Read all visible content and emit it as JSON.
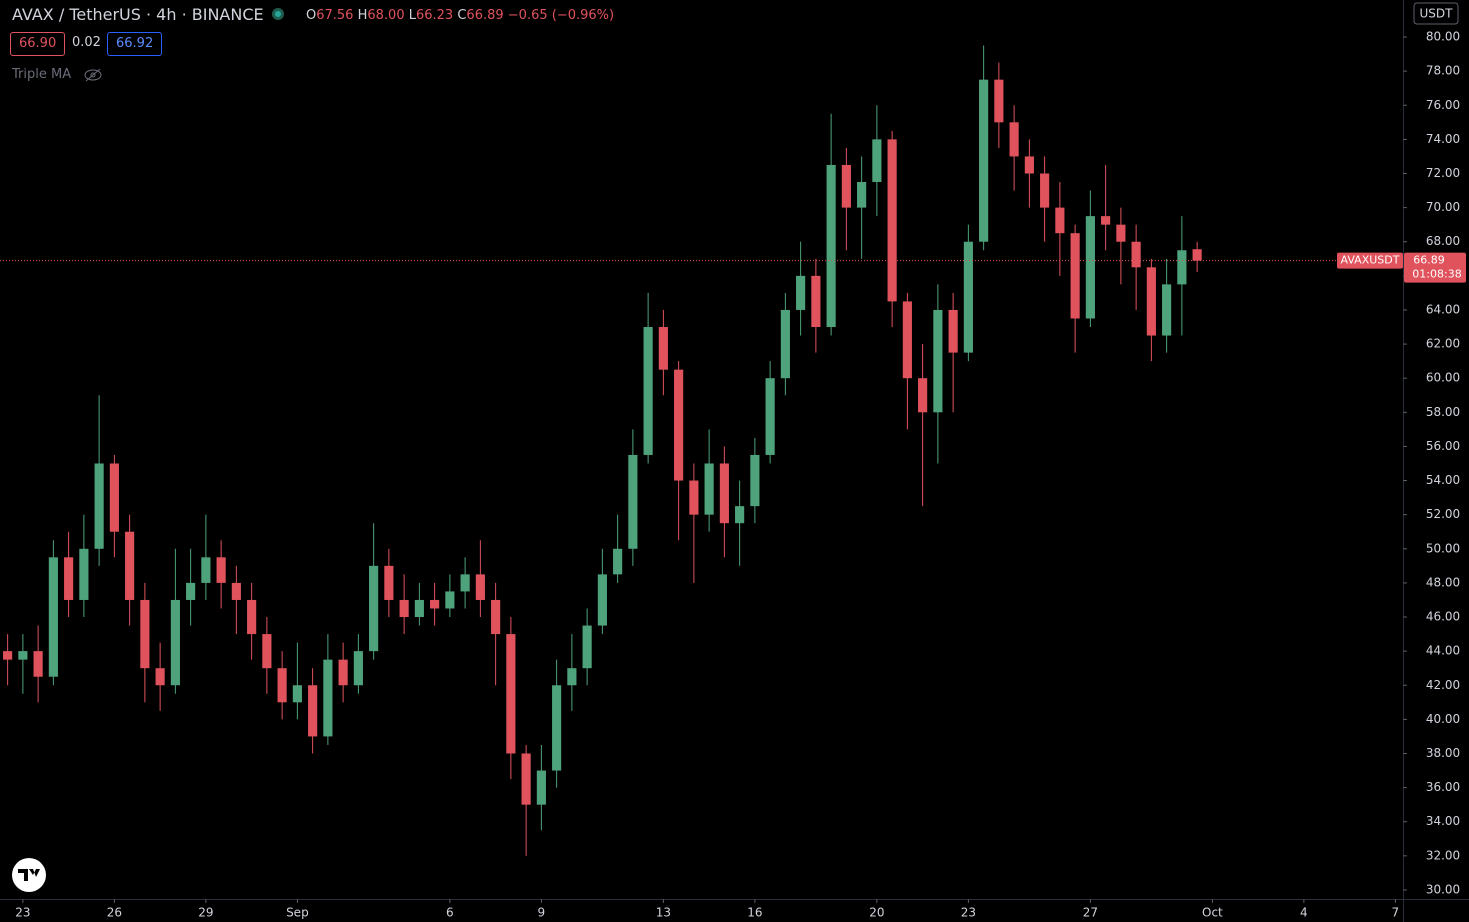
{
  "header": {
    "symbol": "AVAX / TetherUS · 4h · BINANCE",
    "o_label": "O",
    "o": "67.56",
    "h_label": "H",
    "h": "68.00",
    "l_label": "L",
    "l": "66.23",
    "c_label": "C",
    "c": "66.89",
    "change": "−0.65 (−0.96%)",
    "bid": "66.90",
    "spread": "0.02",
    "ask": "66.92",
    "indicator": "Triple MA",
    "currency": "USDT",
    "price_tag": "AVAXUSDT",
    "countdown": "01:08:38"
  },
  "chart_data": {
    "type": "candlestick",
    "title": "AVAX / TetherUS · 4h · BINANCE",
    "up_color": "#4fa37c",
    "down_color": "#e0535d",
    "x": [
      -0.5,
      0,
      0.5,
      1,
      1.5,
      2,
      2.5,
      3,
      3.5,
      4,
      4.5,
      5,
      5.5,
      6,
      6.5,
      7,
      7.5,
      8,
      8.5,
      9,
      9.5,
      10,
      10.5,
      11,
      11.5,
      12,
      12.5,
      13,
      13.5,
      14,
      14.5,
      15,
      15.5,
      16,
      16.5,
      17,
      17.5,
      18,
      18.5,
      19,
      19.5,
      20,
      20.5,
      21,
      21.5,
      22,
      22.5,
      23,
      23.5,
      24,
      24.5,
      25,
      25.5,
      26,
      26.5,
      27,
      27.5,
      28,
      28.5,
      29,
      29.5,
      30,
      30.5,
      31,
      31.5,
      32,
      32.5,
      33,
      33.5,
      34,
      34.5,
      35,
      35.5,
      36,
      36.5,
      37,
      37.5,
      38,
      38.5
    ],
    "open": [
      44,
      43.5,
      44,
      42.5,
      49.5,
      47,
      50,
      55,
      51,
      47,
      43,
      42,
      47,
      48,
      49.5,
      48,
      47,
      45,
      43,
      41,
      42,
      39,
      43.5,
      42,
      44,
      49,
      47,
      46,
      47,
      46.5,
      47.5,
      48.5,
      47,
      45,
      38,
      35,
      37,
      42,
      43,
      45.5,
      48.5,
      50,
      55.5,
      63,
      60.5,
      54,
      52,
      55,
      51.5,
      52.5,
      55.5,
      60,
      64,
      66,
      63,
      72.5,
      70,
      71.5,
      74,
      64.5,
      60,
      58,
      64,
      61.5,
      68,
      77.5,
      75,
      73,
      72,
      70,
      68.5,
      63.5,
      69.5,
      69,
      68,
      66.5,
      62.5,
      65.5,
      67.56
    ],
    "high": [
      45,
      45,
      45.5,
      50.5,
      51,
      52,
      59,
      55.5,
      52,
      48,
      44.5,
      50,
      50,
      52,
      50.5,
      49,
      48,
      46,
      44,
      44.5,
      43,
      45,
      44.5,
      45,
      51.5,
      50,
      48.5,
      48,
      48,
      48.5,
      49.5,
      50.5,
      48,
      46,
      38.5,
      38.5,
      43.5,
      45,
      46.5,
      50,
      52,
      57,
      65,
      64,
      61,
      55,
      57,
      56,
      54,
      56.5,
      61,
      65,
      68,
      67,
      75.5,
      73.5,
      73,
      76,
      74.5,
      65,
      62,
      65.5,
      65,
      69,
      79.5,
      78.5,
      76,
      74,
      73,
      71.5,
      69,
      71,
      72.5,
      70,
      69,
      67,
      67,
      69.5,
      68
    ],
    "low": [
      42,
      41.5,
      41,
      42,
      46,
      46,
      49,
      49.5,
      45.5,
      41,
      40.5,
      41.5,
      45.5,
      47,
      46.5,
      45,
      43.5,
      41.5,
      40,
      40,
      38,
      38.5,
      41,
      41.5,
      43.5,
      46,
      45,
      45.5,
      45.5,
      46,
      46.5,
      46,
      42,
      36.5,
      32,
      33.5,
      36,
      40.5,
      42,
      45,
      48,
      49,
      55,
      59,
      50.5,
      48,
      51,
      49.5,
      49,
      51.5,
      55,
      59,
      62.5,
      61.5,
      62.5,
      67.5,
      67,
      69.5,
      63,
      57,
      52.5,
      55,
      58,
      61,
      67.5,
      73.5,
      71,
      70,
      68,
      66,
      61.5,
      63,
      67.5,
      65.5,
      64,
      61,
      61.5,
      62.5,
      66.23
    ],
    "close": [
      43.5,
      44,
      42.5,
      49.5,
      47,
      50,
      55,
      51,
      47,
      43,
      42,
      47,
      48,
      49.5,
      48,
      47,
      45,
      43,
      41,
      42,
      39,
      43.5,
      42,
      44,
      49,
      47,
      46,
      47,
      46.5,
      47.5,
      48.5,
      47,
      45,
      38,
      35,
      37,
      42,
      43,
      45.5,
      48.5,
      50,
      55.5,
      63,
      60.5,
      54,
      52,
      55,
      51.5,
      52.5,
      55.5,
      60,
      64,
      66,
      63,
      72.5,
      70,
      71.5,
      74,
      64.5,
      60,
      58,
      64,
      61.5,
      68,
      77.5,
      75,
      73,
      72,
      70,
      68.5,
      63.5,
      69.5,
      69,
      68,
      66.5,
      62.5,
      65.5,
      67.5,
      66.89
    ],
    "xlim": [
      -0.75,
      45.25
    ],
    "xticks": [
      {
        "value": 0,
        "label": "23"
      },
      {
        "value": 3,
        "label": "26"
      },
      {
        "value": 6,
        "label": "29"
      },
      {
        "value": 9,
        "label": "Sep"
      },
      {
        "value": 14,
        "label": "6"
      },
      {
        "value": 17,
        "label": "9"
      },
      {
        "value": 21,
        "label": "13"
      },
      {
        "value": 24,
        "label": "16"
      },
      {
        "value": 28,
        "label": "20"
      },
      {
        "value": 31,
        "label": "23"
      },
      {
        "value": 35,
        "label": "27"
      },
      {
        "value": 39,
        "label": "Oct"
      },
      {
        "value": 42,
        "label": "4"
      },
      {
        "value": 45,
        "label": "7"
      }
    ],
    "ylim": [
      29.47,
      82.17
    ],
    "yticks": [
      {
        "value": 30,
        "label": "30.00"
      },
      {
        "value": 32,
        "label": "32.00"
      },
      {
        "value": 34,
        "label": "34.00"
      },
      {
        "value": 36,
        "label": "36.00"
      },
      {
        "value": 38,
        "label": "38.00"
      },
      {
        "value": 40,
        "label": "40.00"
      },
      {
        "value": 42,
        "label": "42.00"
      },
      {
        "value": 44,
        "label": "44.00"
      },
      {
        "value": 46,
        "label": "46.00"
      },
      {
        "value": 48,
        "label": "48.00"
      },
      {
        "value": 50,
        "label": "50.00"
      },
      {
        "value": 52,
        "label": "52.00"
      },
      {
        "value": 54,
        "label": "54.00"
      },
      {
        "value": 56,
        "label": "56.00"
      },
      {
        "value": 58,
        "label": "58.00"
      },
      {
        "value": 60,
        "label": "60.00"
      },
      {
        "value": 62,
        "label": "62.00"
      },
      {
        "value": 64,
        "label": "64.00"
      },
      {
        "value": 66,
        "label": "66.00"
      },
      {
        "value": 68,
        "label": "68.00"
      },
      {
        "value": 70,
        "label": "70.00"
      },
      {
        "value": 72,
        "label": "72.00"
      },
      {
        "value": 74,
        "label": "74.00"
      },
      {
        "value": 76,
        "label": "76.00"
      },
      {
        "value": 78,
        "label": "78.00"
      },
      {
        "value": 80,
        "label": "80.00"
      }
    ],
    "last_price": {
      "value": 66.89,
      "label": "66.89"
    }
  }
}
